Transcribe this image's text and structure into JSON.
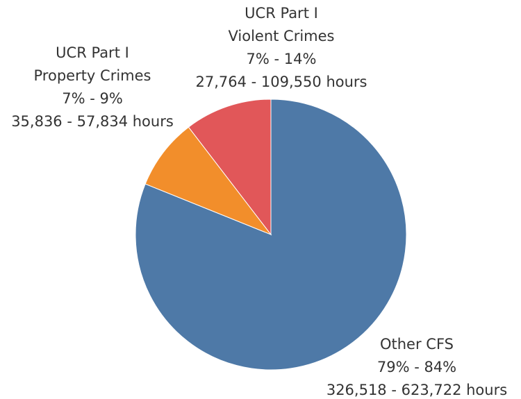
{
  "chart_data": {
    "type": "pie",
    "categories": [
      [
        "Other CFS"
      ],
      [
        "UCR Part I",
        "Property Crimes"
      ],
      [
        "UCR Part I",
        "Violent Crimes"
      ]
    ],
    "values": [
      81.1,
      8.5,
      10.4
    ],
    "percent_ranges": [
      "79% - 84%",
      "7% - 9%",
      "7% - 14%"
    ],
    "hours_ranges": [
      "326,518 - 623,722 hours",
      "35,836 - 57,834 hours",
      "27,764 - 109,550 hours"
    ],
    "colors": [
      "#4e79a7",
      "#f28e2b",
      "#e15759"
    ]
  }
}
